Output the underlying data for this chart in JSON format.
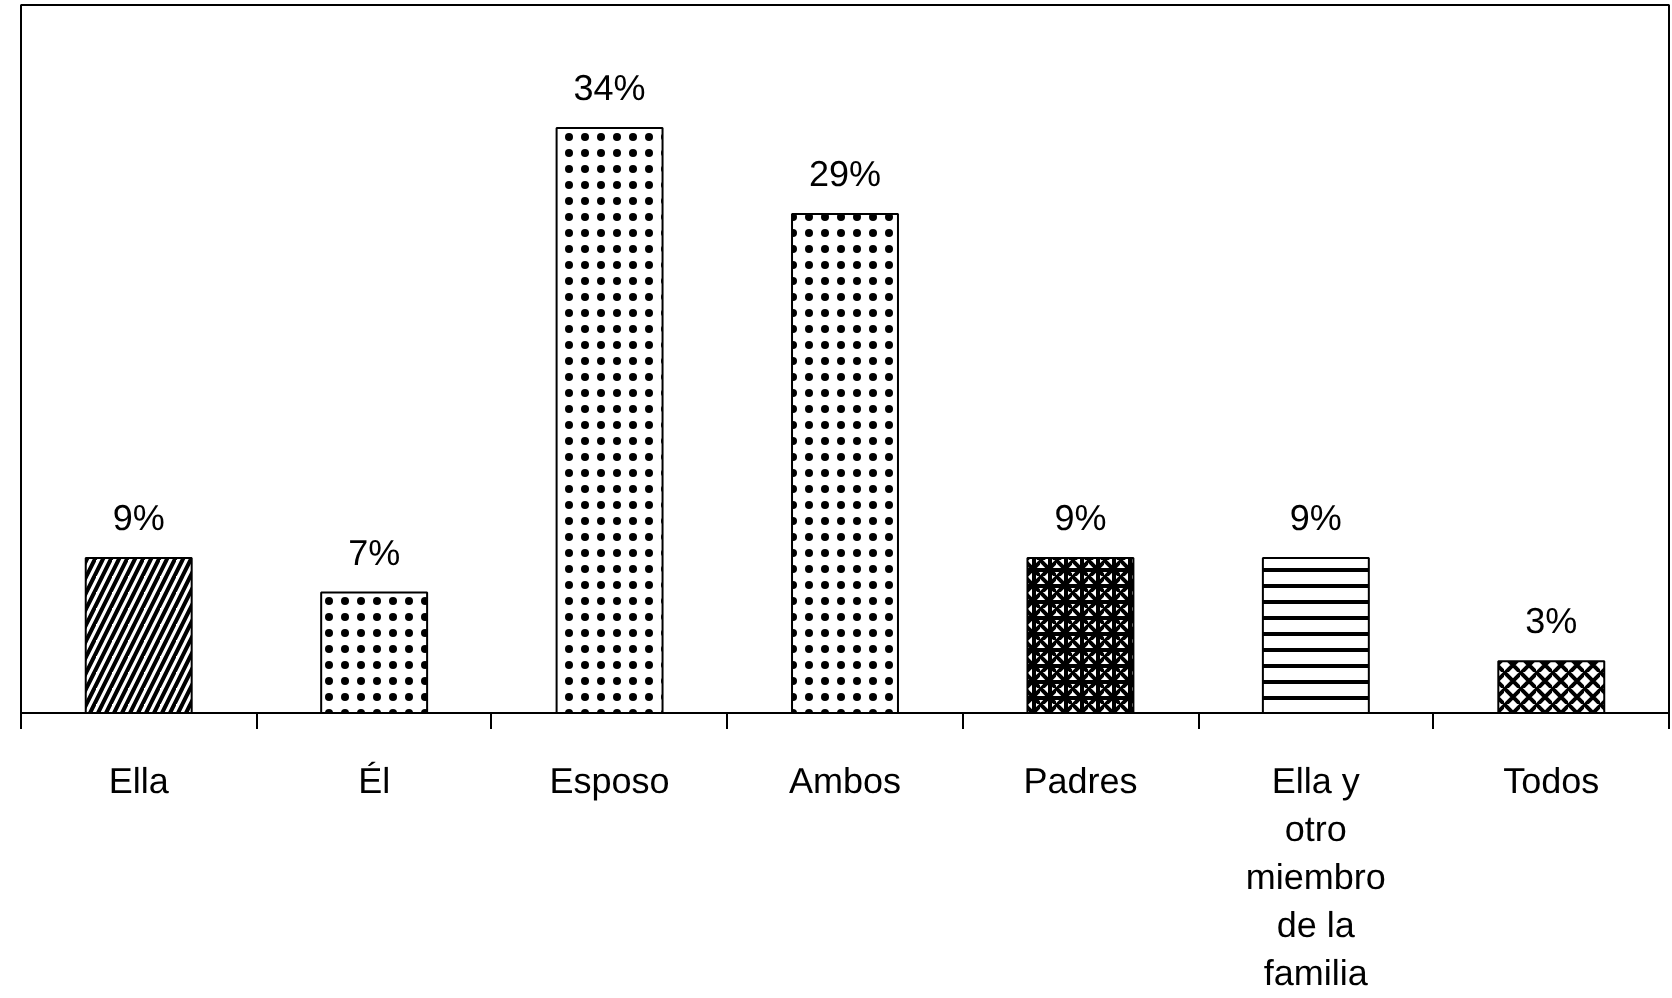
{
  "chart_data": {
    "type": "bar",
    "categories": [
      "Ella",
      "Él",
      "Esposo",
      "Ambos",
      "Padres",
      "Ella y otro miembro de la familia",
      "Todos"
    ],
    "values": [
      9,
      7,
      34,
      29,
      9,
      9,
      3
    ],
    "value_labels": [
      "9%",
      "7%",
      "34%",
      "29%",
      "9%",
      "9%",
      "3%"
    ],
    "colors": [
      "#000000",
      "#000000",
      "#000000",
      "#000000",
      "#000000",
      "#000000",
      "#000000"
    ]
  }
}
